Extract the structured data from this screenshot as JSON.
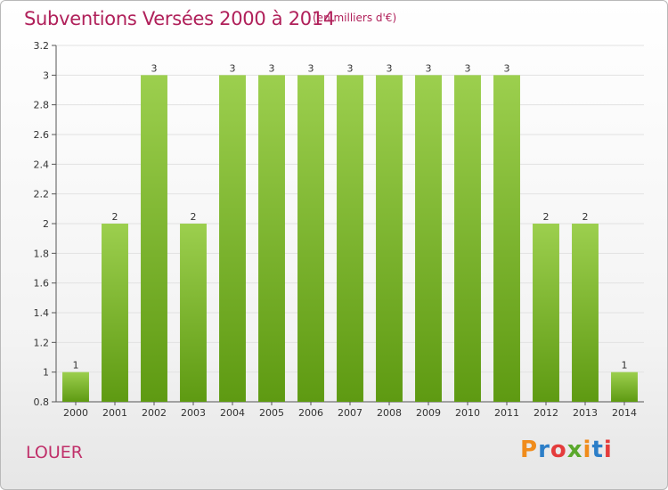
{
  "header": {
    "title": "Subventions Versées 2000 à 2014",
    "unit": "(en milliers d'€)"
  },
  "footer": {
    "commune": "LOUER",
    "logo_text": "Proxiti"
  },
  "colors": {
    "title": "#b0205a",
    "bar_top": "#9ccf4e",
    "bar_bottom": "#5e9a12",
    "logo_letters": [
      "#f08c1c",
      "#2c7ec8",
      "#e43c3c",
      "#5aa82c",
      "#f08c1c",
      "#2c7ec8",
      "#e43c3c"
    ]
  },
  "chart_data": {
    "type": "bar",
    "title": "Subventions Versées 2000 à 2014",
    "xlabel": "",
    "ylabel": "",
    "categories": [
      "2000",
      "2001",
      "2002",
      "2003",
      "2004",
      "2005",
      "2006",
      "2007",
      "2008",
      "2009",
      "2010",
      "2011",
      "2012",
      "2013",
      "2014"
    ],
    "values": [
      1,
      2,
      3,
      2,
      3,
      3,
      3,
      3,
      3,
      3,
      3,
      3,
      2,
      2,
      1
    ],
    "data_labels": [
      "1",
      "2",
      "3",
      "2",
      "3",
      "3",
      "3",
      "3",
      "3",
      "3",
      "3",
      "3",
      "2",
      "2",
      "1"
    ],
    "ylim": [
      0.8,
      3.2
    ],
    "yticks": [
      0.8,
      1,
      1.2,
      1.4,
      1.6,
      1.8,
      2,
      2.2,
      2.4,
      2.6,
      2.8,
      3,
      3.2
    ],
    "ytick_labels": [
      "0.8",
      "1",
      "1.2",
      "1.4",
      "1.6",
      "1.8",
      "2",
      "2.2",
      "2.4",
      "2.6",
      "2.8",
      "3",
      "3.2"
    ],
    "grid": true,
    "legend": "none"
  }
}
